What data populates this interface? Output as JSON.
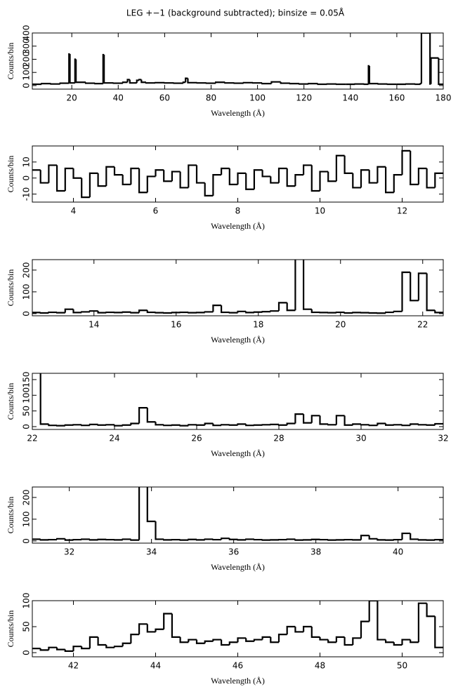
{
  "chart_data": [
    {
      "type": "histogram",
      "title": "LEG +−1 (background subtracted); binsize = 0.05Å",
      "xlabel": "Wavelength (Å)",
      "ylabel": "Counts/bin",
      "color": "#000000",
      "xlim": [
        3,
        180
      ],
      "ylim": [
        -27,
        400
      ],
      "xticks": [
        20,
        40,
        60,
        80,
        100,
        120,
        140,
        160,
        180
      ],
      "yticks": [
        0,
        100,
        200,
        300,
        400
      ],
      "bins": [
        3,
        7,
        11,
        15,
        18.8,
        19.2,
        21.4,
        21.8,
        26,
        30,
        33.5,
        33.9,
        38,
        42,
        44,
        45,
        48,
        49,
        50,
        52,
        56,
        60,
        64,
        68,
        69,
        70,
        74,
        78,
        82,
        86,
        90,
        94,
        98,
        102,
        106,
        110,
        114,
        118,
        122,
        126,
        130,
        134,
        138,
        142,
        146,
        147.8,
        148.2,
        152,
        156,
        160,
        164,
        168,
        170.2,
        170.6,
        174.3,
        174.7,
        178,
        180
      ],
      "values": [
        10,
        15,
        12,
        18,
        240,
        20,
        200,
        25,
        18,
        15,
        235,
        20,
        18,
        25,
        45,
        20,
        40,
        45,
        25,
        20,
        22,
        20,
        18,
        25,
        55,
        22,
        20,
        18,
        25,
        20,
        18,
        22,
        20,
        15,
        28,
        18,
        15,
        12,
        15,
        10,
        12,
        10,
        10,
        12,
        10,
        150,
        15,
        12,
        10,
        10,
        12,
        10,
        15,
        400,
        12,
        210,
        10
      ]
    },
    {
      "type": "histogram",
      "xlabel": "Wavelength (Å)",
      "ylabel": "Counts/bin",
      "color": "#000000",
      "xlim": [
        3,
        13
      ],
      "ylim": [
        -15,
        20
      ],
      "xticks": [
        4,
        6,
        8,
        10,
        12
      ],
      "yticks": [
        -10,
        0,
        10
      ],
      "bins": [
        3,
        3.2,
        3.4,
        3.6,
        3.8,
        4,
        4.2,
        4.4,
        4.6,
        4.8,
        5,
        5.2,
        5.4,
        5.6,
        5.8,
        6,
        6.2,
        6.4,
        6.6,
        6.8,
        7,
        7.2,
        7.4,
        7.6,
        7.8,
        8,
        8.2,
        8.4,
        8.6,
        8.8,
        9,
        9.2,
        9.4,
        9.6,
        9.8,
        10,
        10.2,
        10.4,
        10.6,
        10.8,
        11,
        11.2,
        11.4,
        11.6,
        11.8,
        12,
        12.2,
        12.4,
        12.6,
        12.8,
        13
      ],
      "values": [
        5,
        -3,
        8,
        -8,
        6,
        0,
        -12,
        3,
        -5,
        7,
        2,
        -4,
        6,
        -9,
        1,
        5,
        -2,
        4,
        -6,
        8,
        -3,
        -11,
        2,
        6,
        -4,
        3,
        -7,
        5,
        1,
        -3,
        6,
        -5,
        2,
        8,
        -8,
        4,
        -2,
        14,
        3,
        -6,
        5,
        -3,
        7,
        -9,
        2,
        17,
        -4,
        6,
        -6,
        3
      ]
    },
    {
      "type": "histogram",
      "xlabel": "Wavelength (Å)",
      "ylabel": "Counts/bin",
      "color": "#000000",
      "xlim": [
        12.5,
        22.5
      ],
      "ylim": [
        -10,
        248
      ],
      "xticks": [
        14,
        16,
        18,
        20,
        22
      ],
      "yticks": [
        0,
        100,
        200
      ],
      "bins": [
        12.5,
        12.7,
        12.9,
        13.1,
        13.3,
        13.5,
        13.7,
        13.9,
        14.1,
        14.3,
        14.5,
        14.7,
        14.9,
        15.1,
        15.3,
        15.5,
        15.7,
        15.9,
        16.1,
        16.3,
        16.5,
        16.7,
        16.9,
        17.1,
        17.3,
        17.5,
        17.7,
        17.9,
        18.1,
        18.3,
        18.5,
        18.7,
        18.9,
        19.1,
        19.3,
        19.5,
        19.7,
        19.9,
        20.1,
        20.3,
        20.5,
        20.7,
        20.9,
        21.1,
        21.3,
        21.5,
        21.7,
        21.9,
        22.1,
        22.3,
        22.5
      ],
      "values": [
        5,
        3,
        6,
        4,
        20,
        5,
        8,
        12,
        4,
        6,
        5,
        7,
        4,
        15,
        6,
        4,
        3,
        5,
        6,
        4,
        5,
        8,
        38,
        6,
        4,
        10,
        5,
        7,
        9,
        12,
        50,
        15,
        270,
        20,
        6,
        5,
        4,
        6,
        3,
        5,
        4,
        3,
        2,
        6,
        10,
        190,
        60,
        185,
        15,
        5
      ]
    },
    {
      "type": "histogram",
      "xlabel": "Wavelength (Å)",
      "ylabel": "Counts/bin",
      "color": "#000000",
      "xlim": [
        22,
        32
      ],
      "ylim": [
        -9,
        170
      ],
      "xticks": [
        22,
        24,
        26,
        28,
        30,
        32
      ],
      "yticks": [
        0,
        50,
        100,
        150
      ],
      "bins": [
        22,
        22.2,
        22.4,
        22.6,
        22.8,
        23,
        23.2,
        23.4,
        23.6,
        23.8,
        24,
        24.2,
        24.4,
        24.6,
        24.8,
        25,
        25.2,
        25.4,
        25.6,
        25.8,
        26,
        26.2,
        26.4,
        26.6,
        26.8,
        27,
        27.2,
        27.4,
        27.6,
        27.8,
        28,
        28.2,
        28.4,
        28.6,
        28.8,
        29,
        29.2,
        29.4,
        29.6,
        29.8,
        30,
        30.2,
        30.4,
        30.6,
        30.8,
        31,
        31.2,
        31.4,
        31.6,
        31.8,
        32
      ],
      "values": [
        190,
        8,
        4,
        3,
        5,
        6,
        4,
        7,
        5,
        6,
        3,
        5,
        10,
        60,
        15,
        6,
        4,
        5,
        3,
        6,
        5,
        10,
        4,
        6,
        5,
        8,
        4,
        5,
        6,
        7,
        5,
        10,
        40,
        12,
        35,
        8,
        6,
        35,
        5,
        8,
        6,
        4,
        10,
        5,
        6,
        4,
        8,
        6,
        5,
        9
      ]
    },
    {
      "type": "histogram",
      "xlabel": "Wavelength (Å)",
      "ylabel": "Counts/bin",
      "color": "#000000",
      "xlim": [
        31.1,
        41.1
      ],
      "ylim": [
        -10,
        248
      ],
      "xticks": [
        32,
        34,
        36,
        38,
        40
      ],
      "yticks": [
        0,
        100,
        200
      ],
      "bins": [
        31.1,
        31.3,
        31.5,
        31.7,
        31.9,
        32.1,
        32.3,
        32.5,
        32.7,
        32.9,
        33.1,
        33.3,
        33.5,
        33.7,
        33.9,
        34.1,
        34.3,
        34.5,
        34.7,
        34.9,
        35.1,
        35.3,
        35.5,
        35.7,
        35.9,
        36.1,
        36.3,
        36.5,
        36.7,
        36.9,
        37.1,
        37.3,
        37.5,
        37.7,
        37.9,
        38.1,
        38.3,
        38.5,
        38.7,
        38.9,
        39.1,
        39.3,
        39.5,
        39.7,
        39.9,
        40.1,
        40.3,
        40.5,
        40.7,
        40.9,
        41.1
      ],
      "values": [
        8,
        5,
        6,
        10,
        4,
        6,
        8,
        5,
        7,
        6,
        5,
        8,
        4,
        270,
        90,
        8,
        5,
        6,
        4,
        7,
        5,
        8,
        6,
        12,
        7,
        5,
        8,
        6,
        4,
        5,
        6,
        8,
        4,
        5,
        7,
        6,
        4,
        5,
        6,
        5,
        25,
        10,
        5,
        4,
        6,
        35,
        8,
        5,
        4,
        6
      ]
    },
    {
      "type": "histogram",
      "xlabel": "Wavelength (Å)",
      "ylabel": "Counts/bin",
      "color": "#000000",
      "xlim": [
        41,
        51
      ],
      "ylim": [
        -8,
        100
      ],
      "xticks": [
        42,
        44,
        46,
        48,
        50
      ],
      "yticks": [
        0,
        50,
        100
      ],
      "bins": [
        41,
        41.2,
        41.4,
        41.6,
        41.8,
        42,
        42.2,
        42.4,
        42.6,
        42.8,
        43,
        43.2,
        43.4,
        43.6,
        43.8,
        44,
        44.2,
        44.4,
        44.6,
        44.8,
        45,
        45.2,
        45.4,
        45.6,
        45.8,
        46,
        46.2,
        46.4,
        46.6,
        46.8,
        47,
        47.2,
        47.4,
        47.6,
        47.8,
        48,
        48.2,
        48.4,
        48.6,
        48.8,
        49,
        49.2,
        49.4,
        49.6,
        49.8,
        50,
        50.2,
        50.4,
        50.6,
        50.8,
        51
      ],
      "values": [
        8,
        5,
        10,
        6,
        3,
        12,
        8,
        30,
        15,
        10,
        12,
        18,
        35,
        55,
        40,
        45,
        75,
        30,
        20,
        25,
        18,
        22,
        25,
        15,
        20,
        28,
        22,
        25,
        30,
        20,
        35,
        50,
        40,
        50,
        30,
        25,
        20,
        30,
        15,
        28,
        60,
        100,
        25,
        20,
        15,
        25,
        20,
        95,
        70,
        10
      ]
    }
  ]
}
